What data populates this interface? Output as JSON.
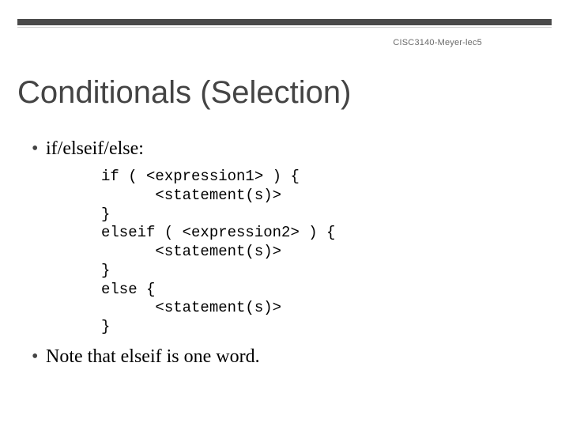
{
  "header": {
    "tag": "CISC3140-Meyer-lec5"
  },
  "title": "Conditionals (Selection)",
  "bullets": [
    {
      "text": "if/elseif/else:"
    },
    {
      "text": "Note that elseif is one word."
    }
  ],
  "code": "if ( <expression1> ) {\n      <statement(s)>\n}\nelseif ( <expression2> ) {\n      <statement(s)>\n}\nelse {\n      <statement(s)>\n}",
  "colors": {
    "topbar": "#4a4a4a",
    "line": "#cfcfcf",
    "title": "#444444",
    "text": "#000000",
    "tag": "#6b6b6b",
    "background": "#ffffff"
  },
  "fontsizes": {
    "title": 40,
    "bullet": 24,
    "code": 19,
    "tag": 11
  }
}
